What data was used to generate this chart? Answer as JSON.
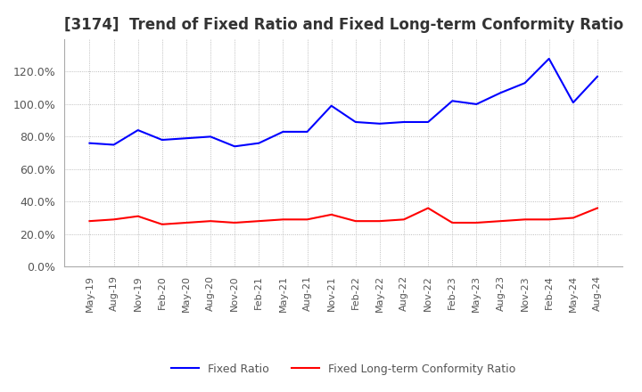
{
  "title": "[3174]  Trend of Fixed Ratio and Fixed Long-term Conformity Ratio",
  "x_labels": [
    "May-19",
    "Aug-19",
    "Nov-19",
    "Feb-20",
    "May-20",
    "Aug-20",
    "Nov-20",
    "Feb-21",
    "May-21",
    "Aug-21",
    "Nov-21",
    "Feb-22",
    "May-22",
    "Aug-22",
    "Nov-22",
    "Feb-23",
    "May-23",
    "Aug-23",
    "Nov-23",
    "Feb-24",
    "May-24",
    "Aug-24"
  ],
  "fixed_ratio": [
    76,
    75,
    84,
    78,
    79,
    80,
    74,
    76,
    83,
    83,
    99,
    89,
    88,
    89,
    89,
    102,
    100,
    107,
    113,
    128,
    101,
    117
  ],
  "fixed_lt_ratio": [
    28,
    29,
    31,
    26,
    27,
    28,
    27,
    28,
    29,
    29,
    32,
    28,
    28,
    29,
    36,
    27,
    27,
    28,
    29,
    29,
    30,
    36
  ],
  "fixed_ratio_color": "#0000ff",
  "fixed_lt_ratio_color": "#ff0000",
  "ylim_min": 0,
  "ylim_max": 140,
  "yticks": [
    0,
    20,
    40,
    60,
    80,
    100,
    120
  ],
  "background_color": "#ffffff",
  "grid_color": "#aaaaaa",
  "title_fontsize": 12,
  "legend_labels": [
    "Fixed Ratio",
    "Fixed Long-term Conformity Ratio"
  ],
  "tick_label_color": "#555555"
}
